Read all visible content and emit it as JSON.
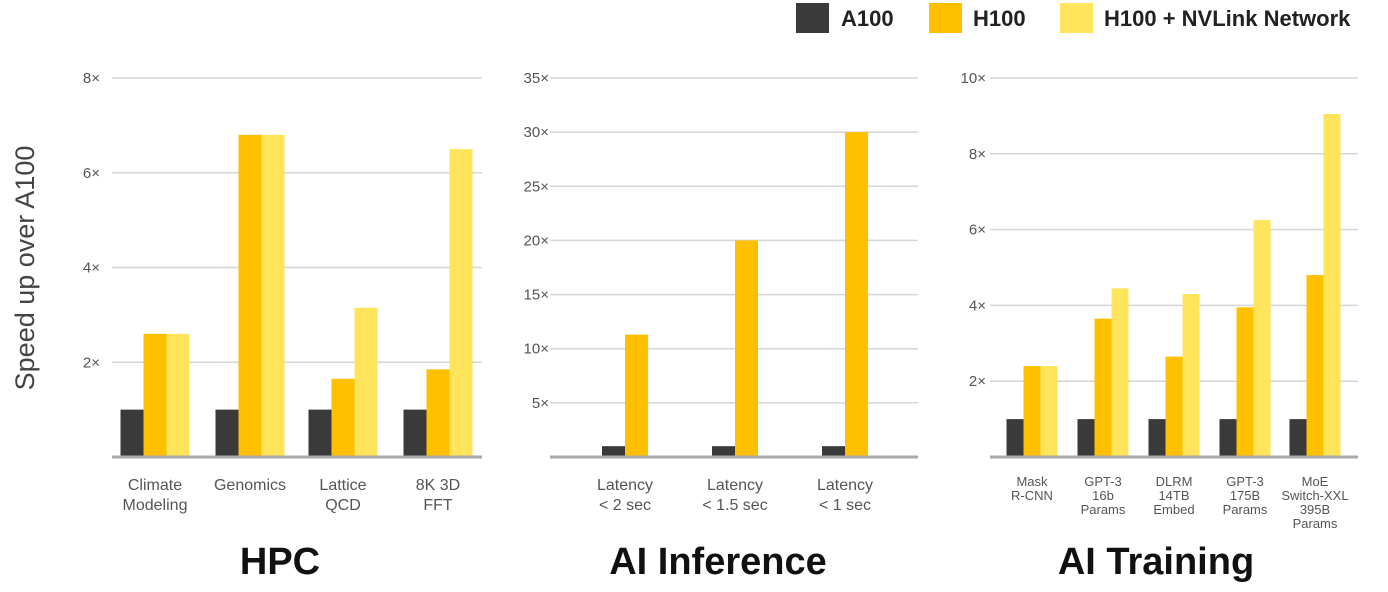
{
  "chart_data": {
    "type": "bar",
    "ylabel": "Speed up over A100",
    "legend": {
      "placement": "top-right",
      "items": [
        {
          "name": "A100",
          "color": "#3a3a3a"
        },
        {
          "name": "H100",
          "color": "#ffc000"
        },
        {
          "name": "H100 + NVLink Network",
          "color": "#ffe45c"
        }
      ]
    },
    "grid": true,
    "panels": [
      {
        "title": "HPC",
        "categories": [
          [
            "Climate",
            "Modeling"
          ],
          [
            "Genomics"
          ],
          [
            "Lattice",
            "QCD"
          ],
          [
            "8K 3D",
            "FFT"
          ]
        ],
        "ylim": [
          0,
          8
        ],
        "yticks": [
          2,
          4,
          6,
          8
        ],
        "tick_labels": [
          "2×",
          "4×",
          "6×",
          "8×"
        ],
        "series": [
          {
            "name": "A100",
            "values": [
              1,
              1,
              1,
              1
            ]
          },
          {
            "name": "H100",
            "values": [
              2.6,
              6.8,
              1.65,
              1.85
            ]
          },
          {
            "name": "H100 + NVLink Network",
            "values": [
              2.6,
              6.8,
              3.15,
              6.5
            ]
          }
        ]
      },
      {
        "title": "AI Inference",
        "categories": [
          [
            "Latency",
            "< 2 sec"
          ],
          [
            "Latency",
            "< 1.5 sec"
          ],
          [
            "Latency",
            "< 1 sec"
          ]
        ],
        "ylim": [
          0,
          35
        ],
        "yticks": [
          5,
          10,
          15,
          20,
          25,
          30,
          35
        ],
        "tick_labels": [
          "5×",
          "10×",
          "15×",
          "20×",
          "25×",
          "30×",
          "35×"
        ],
        "series": [
          {
            "name": "A100",
            "values": [
              1,
              1,
              1
            ]
          },
          {
            "name": "H100",
            "values": [
              11.3,
              20,
              30
            ]
          }
        ]
      },
      {
        "title": "AI Training",
        "categories": [
          [
            "Mask",
            "R-CNN"
          ],
          [
            "GPT-3",
            "16b",
            "Params"
          ],
          [
            "DLRM",
            "14TB",
            "Embed"
          ],
          [
            "GPT-3",
            "175B",
            "Params"
          ],
          [
            "MoE",
            "Switch-XXL",
            "395B",
            "Params"
          ]
        ],
        "ylim": [
          0,
          10
        ],
        "yticks": [
          2,
          4,
          6,
          8,
          10
        ],
        "tick_labels": [
          "2×",
          "4×",
          "6×",
          "8×",
          "10×"
        ],
        "series": [
          {
            "name": "A100",
            "values": [
              1,
              1,
              1,
              1,
              1
            ]
          },
          {
            "name": "H100",
            "values": [
              2.4,
              3.65,
              2.65,
              3.95,
              4.8
            ]
          },
          {
            "name": "H100 + NVLink Network",
            "values": [
              2.4,
              4.45,
              4.3,
              6.25,
              9.05
            ]
          }
        ]
      }
    ]
  }
}
